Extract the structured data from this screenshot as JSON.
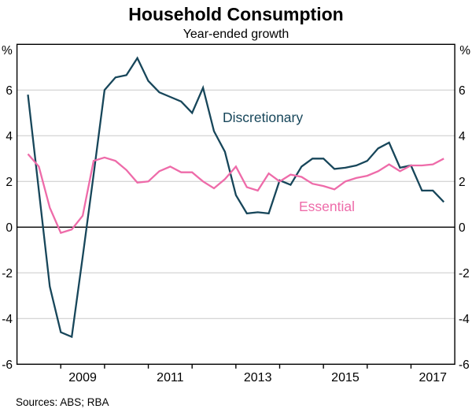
{
  "title": "Household Consumption",
  "subtitle": "Year-ended growth",
  "source": "Sources: ABS; RBA",
  "axes": {
    "unit_left": "%",
    "unit_right": "%",
    "y_tick_labels": [
      6,
      4,
      2,
      0,
      -2,
      -4,
      -6
    ],
    "gridline_values": [
      6,
      4,
      2,
      -2,
      -4
    ],
    "zero_line_value": 0,
    "y_min": -6,
    "y_max": 8,
    "x_year_start": 2008,
    "x_year_span": 10,
    "x_tick_labels": [
      "2009",
      "2011",
      "2013",
      "2015",
      "2017"
    ],
    "grid_color": "#c9c9c9",
    "axis_color": "#000000"
  },
  "chart_data": {
    "type": "line",
    "title": "Household Consumption",
    "subtitle": "Year-ended growth",
    "ylabel": "%",
    "ylim": [
      -6,
      8
    ],
    "grid": true,
    "legend_position": "on-chart-annotations",
    "x": [
      "Mar-2008",
      "Jun-2008",
      "Sep-2008",
      "Dec-2008",
      "Mar-2009",
      "Jun-2009",
      "Sep-2009",
      "Dec-2009",
      "Mar-2010",
      "Jun-2010",
      "Sep-2010",
      "Dec-2010",
      "Mar-2011",
      "Jun-2011",
      "Sep-2011",
      "Dec-2011",
      "Mar-2012",
      "Jun-2012",
      "Sep-2012",
      "Dec-2012",
      "Mar-2013",
      "Jun-2013",
      "Sep-2013",
      "Dec-2013",
      "Mar-2014",
      "Jun-2014",
      "Sep-2014",
      "Dec-2014",
      "Mar-2015",
      "Jun-2015",
      "Sep-2015",
      "Dec-2015",
      "Mar-2016",
      "Jun-2016",
      "Sep-2016",
      "Dec-2016",
      "Mar-2017",
      "Jun-2017",
      "Sep-2017"
    ],
    "series": [
      {
        "name": "Discretionary",
        "color": "#17465a",
        "values": [
          5.8,
          1.6,
          -2.6,
          -4.6,
          -4.8,
          -1.3,
          2.3,
          6.0,
          6.55,
          6.65,
          7.4,
          6.4,
          5.9,
          5.7,
          5.5,
          5.0,
          6.1,
          4.2,
          3.3,
          1.4,
          0.6,
          0.65,
          0.6,
          2.05,
          1.85,
          2.65,
          3.0,
          3.0,
          2.55,
          2.6,
          2.7,
          2.9,
          3.45,
          3.7,
          2.6,
          2.7,
          1.6,
          1.6,
          1.1
        ]
      },
      {
        "name": "Essential",
        "color": "#ee6ba9",
        "values": [
          3.2,
          2.65,
          0.85,
          -0.25,
          -0.1,
          0.5,
          2.9,
          3.05,
          2.9,
          2.5,
          1.95,
          2.0,
          2.45,
          2.65,
          2.4,
          2.4,
          2.0,
          1.7,
          2.1,
          2.65,
          1.75,
          1.6,
          2.35,
          2.0,
          2.3,
          2.2,
          1.9,
          1.8,
          1.65,
          2.0,
          2.15,
          2.25,
          2.45,
          2.75,
          2.45,
          2.7,
          2.7,
          2.75,
          3.0
        ]
      }
    ]
  }
}
